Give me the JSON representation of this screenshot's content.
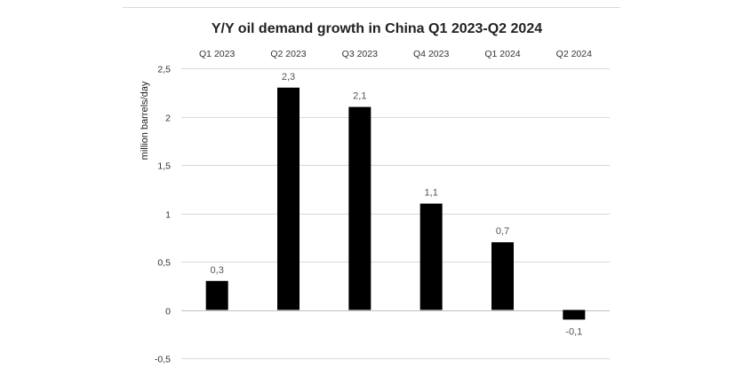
{
  "chart_data": {
    "type": "bar",
    "title": "Y/Y oil demand growth in China Q1 2023-Q2 2024",
    "ylabel": "million barrels/day",
    "xlabel": "",
    "categories": [
      "Q1 2023",
      "Q2 2023",
      "Q3 2023",
      "Q4 2023",
      "Q1 2024",
      "Q2 2024"
    ],
    "values": [
      0.3,
      2.3,
      2.1,
      1.1,
      0.7,
      -0.1
    ],
    "data_labels": [
      "0,3",
      "2,3",
      "2,1",
      "1,1",
      "0,7",
      "-0,1"
    ],
    "ylim": [
      -0.5,
      2.5
    ],
    "yticks": [
      2.5,
      2,
      1.5,
      1,
      0.5,
      0,
      -0.5
    ],
    "ytick_labels": [
      "2,5",
      "2",
      "1,5",
      "1",
      "0,5",
      "0",
      "-0,5"
    ],
    "category_axis_position": "top",
    "grid": true,
    "legend": "none",
    "colors": {
      "bar": "#000000",
      "grid": "#d9d9d9",
      "zero_line": "#bfbfbf"
    }
  }
}
